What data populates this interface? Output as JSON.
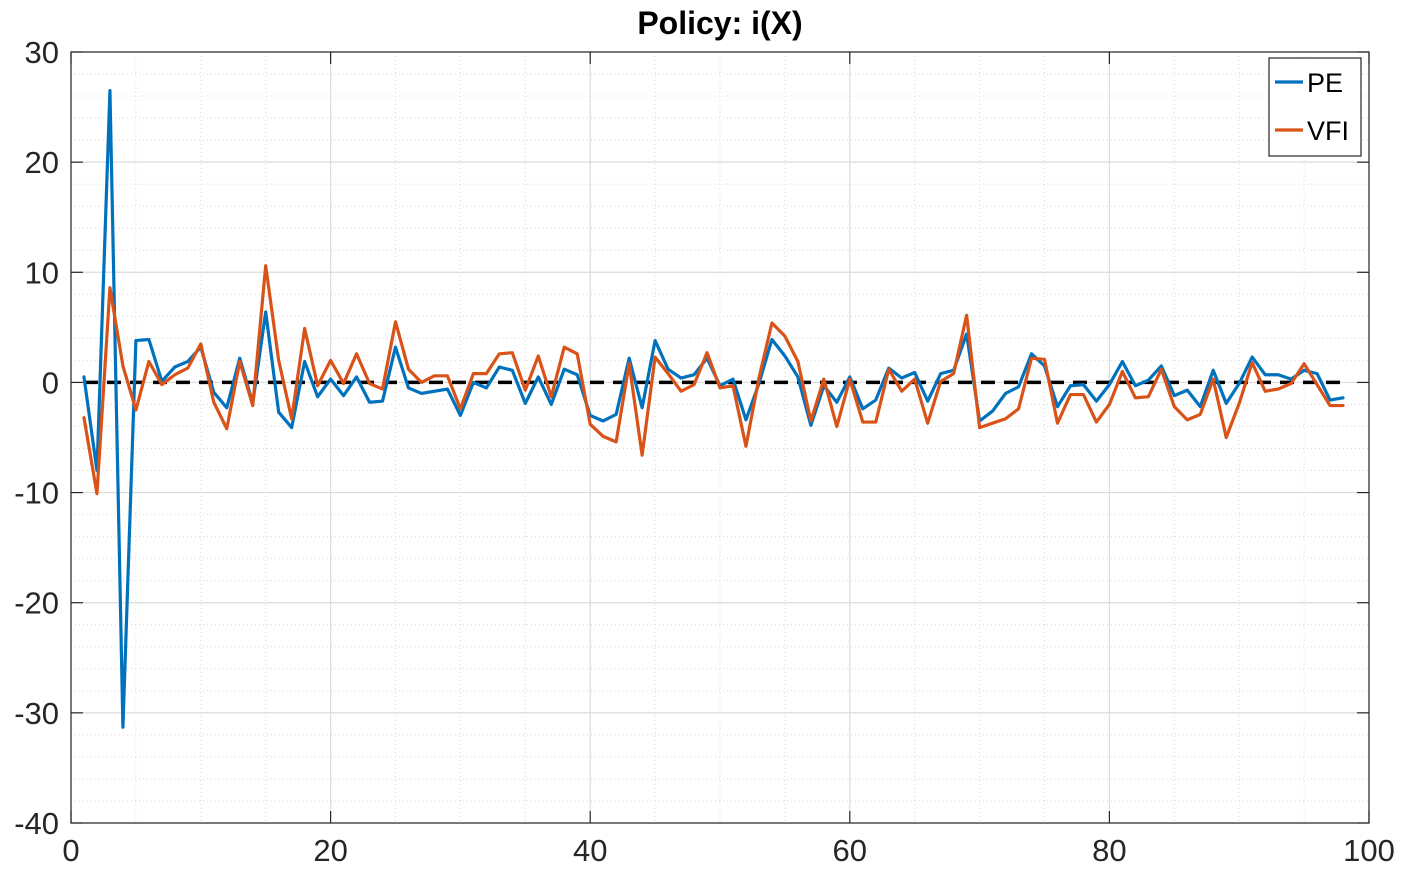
{
  "chart_data": {
    "type": "line",
    "title": "Policy: i(X)",
    "xlabel": "",
    "ylabel": "",
    "xlim": [
      0,
      100
    ],
    "ylim": [
      -40,
      30
    ],
    "xticks": [
      0,
      20,
      40,
      60,
      80,
      100
    ],
    "yticks": [
      -40,
      -30,
      -20,
      -10,
      0,
      10,
      20,
      30
    ],
    "xtick_labels": [
      "0",
      "20",
      "40",
      "60",
      "80",
      "100"
    ],
    "ytick_labels": [
      "-40",
      "-30",
      "-20",
      "-10",
      "0",
      "10",
      "20",
      "30"
    ],
    "grid": true,
    "minor_grid": true,
    "legend_position": "top-right",
    "reference_line": {
      "y": 0,
      "style": "dashed",
      "color": "#000000"
    },
    "x": [
      1,
      2,
      3,
      4,
      5,
      6,
      7,
      8,
      9,
      10,
      11,
      12,
      13,
      14,
      15,
      16,
      17,
      18,
      19,
      20,
      21,
      22,
      23,
      24,
      25,
      26,
      27,
      28,
      29,
      30,
      31,
      32,
      33,
      34,
      35,
      36,
      37,
      38,
      39,
      40,
      41,
      42,
      43,
      44,
      45,
      46,
      47,
      48,
      49,
      50,
      51,
      52,
      53,
      54,
      55,
      56,
      57,
      58,
      59,
      60,
      61,
      62,
      63,
      64,
      65,
      66,
      67,
      68,
      69,
      70,
      71,
      72,
      73,
      74,
      75,
      76,
      77,
      78,
      79,
      80,
      81,
      82,
      83,
      84,
      85,
      86,
      87,
      88,
      89,
      90,
      91,
      92,
      93,
      94,
      95,
      96,
      97,
      98
    ],
    "series": [
      {
        "name": "PE",
        "color": "#0072BD",
        "values": [
          0.5,
          -8,
          26.5,
          -31.3,
          3.8,
          3.9,
          0.1,
          1.4,
          1.9,
          3.2,
          -0.9,
          -2.3,
          2.2,
          -1.9,
          6.4,
          -2.7,
          -4.1,
          1.9,
          -1.3,
          0.3,
          -1.2,
          0.5,
          -1.8,
          -1.7,
          3.2,
          -0.5,
          -1.0,
          -0.8,
          -0.6,
          -3.0,
          0.0,
          -0.5,
          1.4,
          1.1,
          -1.9,
          0.5,
          -2.0,
          1.2,
          0.7,
          -3.0,
          -3.5,
          -2.9,
          2.2,
          -2.3,
          3.8,
          1.2,
          0.4,
          0.7,
          2.2,
          -0.3,
          0.3,
          -3.4,
          -0.1,
          3.9,
          2.4,
          0.5,
          -3.9,
          -0.3,
          -1.8,
          0.5,
          -2.4,
          -1.6,
          1.3,
          0.4,
          0.9,
          -1.7,
          0.8,
          1.1,
          4.4,
          -3.5,
          -2.6,
          -1.0,
          -0.4,
          2.6,
          1.5,
          -2.2,
          -0.3,
          -0.2,
          -1.7,
          -0.2,
          1.9,
          -0.3,
          0.2,
          1.5,
          -1.2,
          -0.7,
          -2.2,
          1.1,
          -1.9,
          -0.1,
          2.3,
          0.7,
          0.7,
          0.3,
          1.1,
          0.8,
          -1.6,
          -1.4
        ]
      },
      {
        "name": "VFI",
        "color": "#D95319",
        "values": [
          -3.2,
          -10.1,
          8.6,
          1.5,
          -2.5,
          1.9,
          -0.2,
          0.7,
          1.3,
          3.5,
          -1.8,
          -4.2,
          1.9,
          -2.1,
          10.6,
          2.0,
          -3.3,
          4.9,
          -0.3,
          2.0,
          -0.1,
          2.6,
          -0.1,
          -0.6,
          5.5,
          1.2,
          0.0,
          0.6,
          0.6,
          -2.4,
          0.8,
          0.8,
          2.6,
          2.7,
          -0.7,
          2.4,
          -1.3,
          3.2,
          2.6,
          -3.8,
          -4.9,
          -5.4,
          1.7,
          -6.6,
          2.3,
          0.8,
          -0.8,
          -0.2,
          2.7,
          -0.5,
          -0.3,
          -5.8,
          0.4,
          5.4,
          4.2,
          1.9,
          -3.5,
          0.3,
          -4.0,
          0.3,
          -3.6,
          -3.6,
          1.2,
          -0.8,
          0.3,
          -3.7,
          0.1,
          0.8,
          6.1,
          -4.1,
          -3.7,
          -3.3,
          -2.4,
          2.2,
          2.1,
          -3.7,
          -1.1,
          -1.1,
          -3.6,
          -2.0,
          1.0,
          -1.4,
          -1.3,
          1.2,
          -2.2,
          -3.4,
          -2.9,
          0.3,
          -5.0,
          -1.9,
          1.8,
          -0.8,
          -0.6,
          -0.1,
          1.7,
          -0.2,
          -2.1,
          -2.1
        ]
      }
    ]
  }
}
